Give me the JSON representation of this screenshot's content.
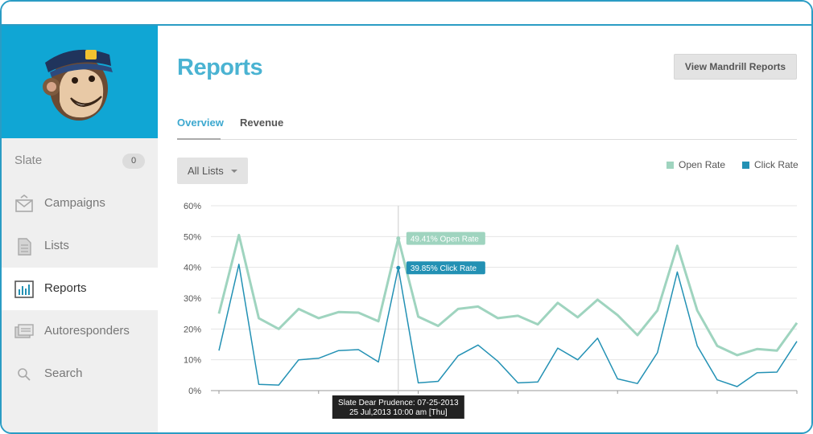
{
  "sidebar": {
    "items": [
      {
        "label": "Slate",
        "count": "0"
      },
      {
        "label": "Campaigns",
        "icon": "envelope-icon"
      },
      {
        "label": "Lists",
        "icon": "document-icon"
      },
      {
        "label": "Reports",
        "icon": "bar-chart-icon"
      },
      {
        "label": "Autoresponders",
        "icon": "autoresponder-icon"
      },
      {
        "label": "Search",
        "icon": "search-icon"
      }
    ],
    "active": "Reports",
    "brand_color": "#10a6d4"
  },
  "header": {
    "title": "Reports",
    "button_label": "View Mandrill Reports"
  },
  "tabs": [
    {
      "label": "Overview",
      "active": true
    },
    {
      "label": "Revenue",
      "active": false
    }
  ],
  "filter": {
    "selected": "All Lists"
  },
  "legend": [
    {
      "label": "Open Rate",
      "color": "#9fd4bf"
    },
    {
      "label": "Click Rate",
      "color": "#2391b4"
    }
  ],
  "tooltip": {
    "open_label": "49.41% Open Rate",
    "click_label": "39.85% Click Rate",
    "footer_line1": "Slate Dear Prudence: 07-25-2013",
    "footer_line2": "25 Jul,2013 10:00 am [Thu]"
  },
  "chart_data": {
    "type": "line",
    "ylim": [
      0,
      60
    ],
    "ytick_labels": [
      "0%",
      "10%",
      "20%",
      "30%",
      "40%",
      "50%",
      "60%"
    ],
    "yticks": [
      0,
      10,
      20,
      30,
      40,
      50,
      60
    ],
    "grid": true,
    "legend_position": "top-right",
    "highlight_index": 9,
    "series": [
      {
        "name": "Open Rate",
        "color": "#9fd4bf",
        "values": [
          25.0,
          50.5,
          23.5,
          20.0,
          26.5,
          23.5,
          25.5,
          25.3,
          22.5,
          49.4,
          24.0,
          21.0,
          26.5,
          27.3,
          23.5,
          24.3,
          21.5,
          28.5,
          23.8,
          29.5,
          24.5,
          18.0,
          26.0,
          47.0,
          26.0,
          14.5,
          11.5,
          13.5,
          13.0,
          22.0
        ]
      },
      {
        "name": "Click Rate",
        "color": "#2391b4",
        "values": [
          13.0,
          41.0,
          2.0,
          1.8,
          10.0,
          10.5,
          13.0,
          13.3,
          9.3,
          39.85,
          2.5,
          3.0,
          11.3,
          14.8,
          9.5,
          2.5,
          2.8,
          13.8,
          10.0,
          17.0,
          3.8,
          2.3,
          12.3,
          38.5,
          14.5,
          3.5,
          1.3,
          5.8,
          6.0,
          16.0
        ]
      }
    ]
  }
}
